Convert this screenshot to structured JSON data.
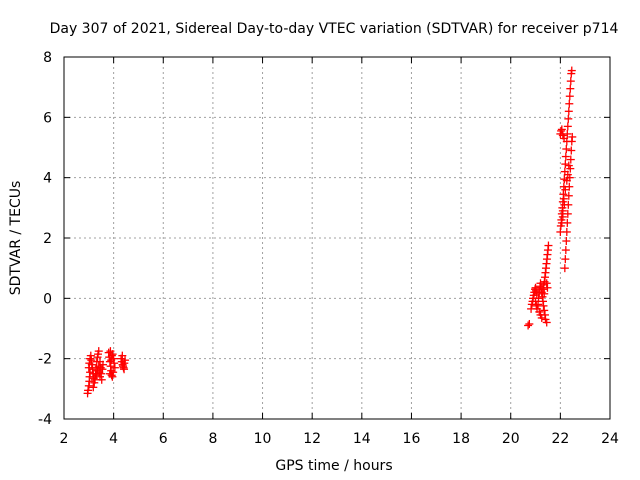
{
  "chart_data": {
    "type": "scatter",
    "title": "Day 307 of 2021, Sidereal Day-to-day VTEC variation (SDTVAR) for receiver p714",
    "xlabel": "GPS time / hours",
    "ylabel": "SDTVAR / TECUs",
    "xlim": [
      2,
      24
    ],
    "ylim": [
      -4,
      8
    ],
    "xticks": [
      "2",
      "4",
      "6",
      "8",
      "10",
      "12",
      "14",
      "16",
      "18",
      "20",
      "22",
      "24"
    ],
    "yticks": [
      "-4",
      "-2",
      "0",
      "2",
      "4",
      "6",
      "8"
    ],
    "grid": true,
    "marker": "+",
    "series": [
      {
        "name": "SDTVAR",
        "color": "#ff0000",
        "points": [
          [
            2.95,
            -3.15
          ],
          [
            2.97,
            -3.05
          ],
          [
            3.0,
            -2.9
          ],
          [
            3.02,
            -2.75
          ],
          [
            3.03,
            -2.6
          ],
          [
            3.05,
            -2.45
          ],
          [
            3.0,
            -2.3
          ],
          [
            3.02,
            -2.15
          ],
          [
            3.05,
            -2.0
          ],
          [
            3.08,
            -1.9
          ],
          [
            3.1,
            -2.05
          ],
          [
            3.12,
            -2.2
          ],
          [
            3.15,
            -2.35
          ],
          [
            3.17,
            -2.5
          ],
          [
            3.2,
            -2.65
          ],
          [
            3.22,
            -2.8
          ],
          [
            3.18,
            -2.95
          ],
          [
            3.25,
            -2.7
          ],
          [
            3.27,
            -2.5
          ],
          [
            3.3,
            -2.3
          ],
          [
            3.32,
            -2.1
          ],
          [
            3.35,
            -1.95
          ],
          [
            3.37,
            -1.85
          ],
          [
            3.4,
            -1.75
          ],
          [
            3.3,
            -2.55
          ],
          [
            3.35,
            -2.4
          ],
          [
            3.4,
            -2.25
          ],
          [
            3.45,
            -2.1
          ],
          [
            3.48,
            -2.3
          ],
          [
            3.5,
            -2.5
          ],
          [
            3.52,
            -2.7
          ],
          [
            3.45,
            -2.6
          ],
          [
            3.42,
            -2.45
          ],
          [
            3.55,
            -2.35
          ],
          [
            3.57,
            -2.2
          ],
          [
            3.8,
            -1.8
          ],
          [
            3.82,
            -1.95
          ],
          [
            3.85,
            -2.1
          ],
          [
            3.88,
            -2.25
          ],
          [
            3.9,
            -2.4
          ],
          [
            3.92,
            -2.55
          ],
          [
            3.95,
            -2.6
          ],
          [
            3.9,
            -2.05
          ],
          [
            3.93,
            -1.9
          ],
          [
            3.96,
            -1.85
          ],
          [
            4.0,
            -2.0
          ],
          [
            4.02,
            -2.15
          ],
          [
            4.05,
            -2.3
          ],
          [
            3.98,
            -2.45
          ],
          [
            3.85,
            -2.5
          ],
          [
            3.87,
            -1.75
          ],
          [
            4.3,
            -2.0
          ],
          [
            4.33,
            -2.1
          ],
          [
            4.36,
            -2.2
          ],
          [
            4.4,
            -2.3
          ],
          [
            4.43,
            -2.15
          ],
          [
            4.46,
            -2.05
          ],
          [
            4.35,
            -1.9
          ],
          [
            4.38,
            -2.25
          ],
          [
            4.42,
            -2.35
          ],
          [
            20.7,
            -0.9
          ],
          [
            20.75,
            -0.85
          ],
          [
            20.82,
            -0.35
          ],
          [
            20.85,
            -0.2
          ],
          [
            20.88,
            -0.1
          ],
          [
            20.9,
            0.0
          ],
          [
            20.93,
            0.1
          ],
          [
            20.95,
            0.2
          ],
          [
            20.98,
            0.3
          ],
          [
            21.0,
            0.35
          ],
          [
            21.02,
            0.25
          ],
          [
            21.05,
            0.15
          ],
          [
            21.0,
            -0.1
          ],
          [
            21.03,
            -0.25
          ],
          [
            21.06,
            -0.35
          ],
          [
            21.1,
            -0.2
          ],
          [
            21.12,
            0.0
          ],
          [
            21.15,
            0.2
          ],
          [
            21.18,
            0.4
          ],
          [
            21.2,
            0.5
          ],
          [
            21.22,
            0.35
          ],
          [
            21.25,
            0.2
          ],
          [
            21.28,
            0.05
          ],
          [
            21.3,
            -0.1
          ],
          [
            21.32,
            -0.25
          ],
          [
            21.35,
            -0.4
          ],
          [
            21.38,
            -0.55
          ],
          [
            21.4,
            -0.7
          ],
          [
            21.45,
            -0.8
          ],
          [
            21.15,
            -0.45
          ],
          [
            21.2,
            -0.55
          ],
          [
            21.25,
            -0.65
          ],
          [
            21.3,
            0.3
          ],
          [
            21.33,
            0.45
          ],
          [
            21.36,
            0.55
          ],
          [
            21.38,
            0.7
          ],
          [
            21.4,
            0.85
          ],
          [
            21.42,
            1.0
          ],
          [
            21.44,
            1.15
          ],
          [
            21.46,
            1.3
          ],
          [
            21.48,
            1.45
          ],
          [
            21.5,
            1.6
          ],
          [
            21.52,
            1.75
          ],
          [
            21.45,
            0.5
          ],
          [
            21.48,
            0.35
          ],
          [
            21.35,
            0.15
          ],
          [
            22.0,
            2.2
          ],
          [
            22.02,
            2.4
          ],
          [
            22.04,
            2.6
          ],
          [
            22.06,
            2.8
          ],
          [
            22.08,
            3.0
          ],
          [
            22.1,
            3.2
          ],
          [
            22.12,
            3.45
          ],
          [
            22.14,
            3.7
          ],
          [
            22.16,
            3.95
          ],
          [
            22.18,
            4.2
          ],
          [
            22.2,
            4.45
          ],
          [
            22.22,
            4.7
          ],
          [
            22.24,
            4.95
          ],
          [
            22.26,
            5.2
          ],
          [
            22.28,
            5.45
          ],
          [
            22.3,
            5.7
          ],
          [
            22.32,
            5.95
          ],
          [
            22.34,
            6.2
          ],
          [
            22.36,
            6.45
          ],
          [
            22.38,
            6.7
          ],
          [
            22.4,
            6.95
          ],
          [
            22.42,
            7.2
          ],
          [
            22.44,
            7.45
          ],
          [
            22.46,
            7.55
          ],
          [
            22.0,
            5.45
          ],
          [
            22.03,
            5.55
          ],
          [
            22.06,
            5.6
          ],
          [
            22.1,
            5.4
          ],
          [
            22.15,
            5.3
          ],
          [
            22.18,
            1.0
          ],
          [
            22.2,
            1.3
          ],
          [
            22.22,
            1.6
          ],
          [
            22.24,
            1.9
          ],
          [
            22.26,
            2.2
          ],
          [
            22.28,
            2.5
          ],
          [
            22.3,
            2.8
          ],
          [
            22.32,
            3.1
          ],
          [
            22.34,
            3.4
          ],
          [
            22.36,
            3.7
          ],
          [
            22.38,
            4.0
          ],
          [
            22.4,
            4.3
          ],
          [
            22.42,
            4.6
          ],
          [
            22.44,
            4.9
          ],
          [
            22.46,
            5.2
          ],
          [
            22.48,
            5.35
          ],
          [
            22.1,
            2.9
          ],
          [
            22.14,
            3.3
          ],
          [
            22.2,
            3.6
          ],
          [
            22.26,
            3.9
          ],
          [
            22.3,
            4.1
          ],
          [
            22.34,
            4.4
          ],
          [
            22.06,
            2.5
          ],
          [
            22.1,
            2.7
          ],
          [
            22.16,
            3.1
          ]
        ]
      }
    ]
  }
}
